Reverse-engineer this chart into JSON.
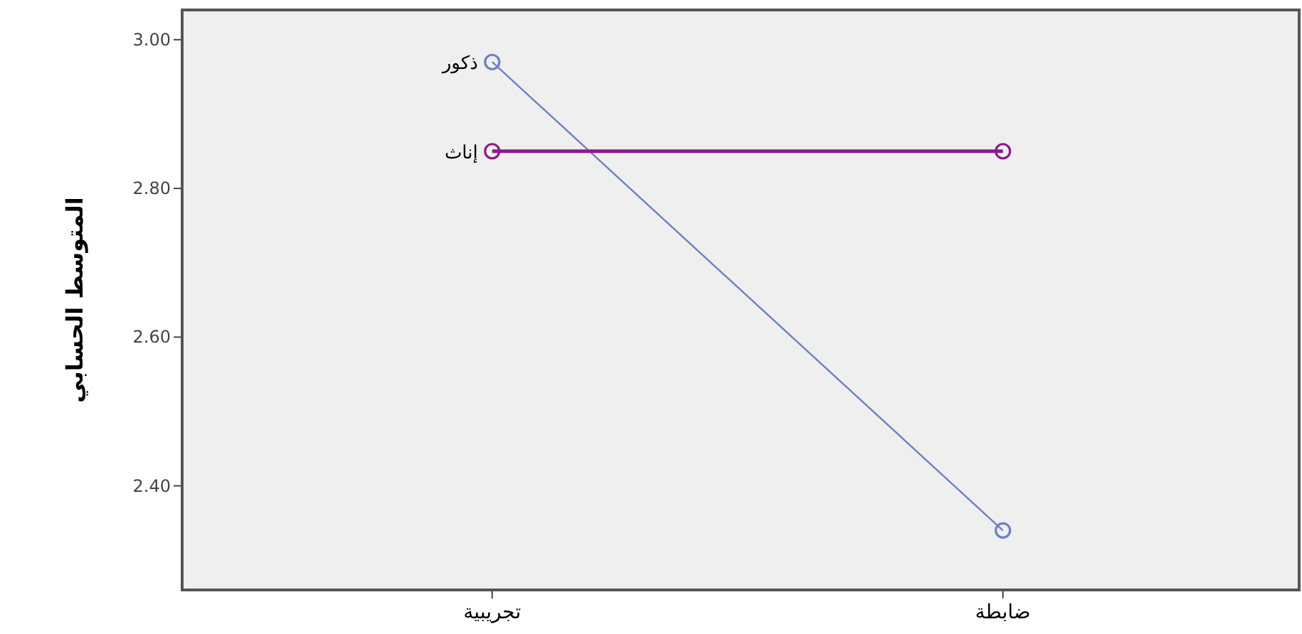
{
  "chart_data": {
    "type": "line",
    "ylabel": "المتوسط الحسابي",
    "categories": [
      "تجريبية",
      "ضابطة"
    ],
    "series": [
      {
        "name": "ذكور",
        "color": "#6a82c4",
        "values": [
          2.97,
          2.34
        ]
      },
      {
        "name": "إناث",
        "color": "#8b1a8b",
        "values": [
          2.85,
          2.85
        ]
      }
    ],
    "ylim": [
      2.26,
      3.04
    ],
    "yticks": [
      {
        "value": 2.4,
        "label": "2.40"
      },
      {
        "value": 2.6,
        "label": "2.60"
      },
      {
        "value": 2.8,
        "label": "2.80"
      },
      {
        "value": 3.0,
        "label": "3.00"
      }
    ],
    "grid": false,
    "legend": false,
    "marker": "circle",
    "line_style": "solid"
  }
}
